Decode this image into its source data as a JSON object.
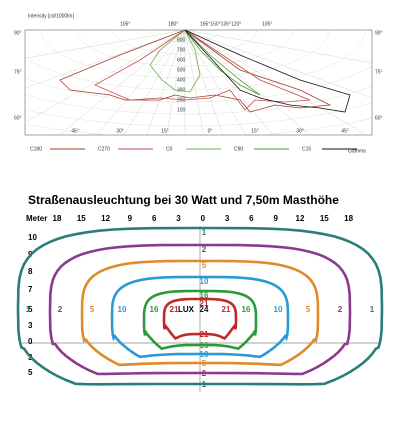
{
  "photometric": {
    "axis_title": "Intensity [cd/1000lm]",
    "top_angles": [
      "105°",
      "180°",
      "165°150°135°120°",
      "105°"
    ],
    "left_angles": [
      "90°",
      "75°",
      "60°"
    ],
    "right_angles": [
      "90°",
      "75°",
      "60°"
    ],
    "bottom_angles": [
      "45°",
      "30°",
      "15°",
      "0°",
      "15°",
      "30°",
      "45°"
    ],
    "radial_values": [
      "800",
      "700",
      "600",
      "500",
      "400",
      "300",
      "200",
      "100"
    ],
    "gamma_label": "Gamma",
    "legend": [
      {
        "name": "C180",
        "color": "#a0402a"
      },
      {
        "name": "C270",
        "color": "#c0504d"
      },
      {
        "name": "C0",
        "color": "#6ab04c"
      },
      {
        "name": "C90",
        "color": "#4f9a3a"
      },
      {
        "name": "C15",
        "color": "#111111"
      }
    ]
  },
  "isolux": {
    "title": "Straßenausleuchtung bei 30 Watt und 7,50m Masthöhe",
    "meter_label": "Meter",
    "x_labels": [
      "18",
      "15",
      "12",
      "9",
      "6",
      "3",
      "0",
      "3",
      "6",
      "9",
      "12",
      "15",
      "18"
    ],
    "y_labels": [
      "10",
      "9",
      "8",
      "7",
      "5",
      "3",
      "0",
      "3",
      "5"
    ],
    "unit": "LUX",
    "center_value": "24",
    "contours": [
      {
        "label": "1",
        "color": "#2a7d78"
      },
      {
        "label": "2",
        "color": "#8b3a8f"
      },
      {
        "label": "5",
        "color": "#e08a2a"
      },
      {
        "label": "10",
        "color": "#2a9ad6"
      },
      {
        "label": "16",
        "color": "#2a9a3a"
      },
      {
        "label": "21",
        "color": "#c0282a"
      }
    ]
  }
}
